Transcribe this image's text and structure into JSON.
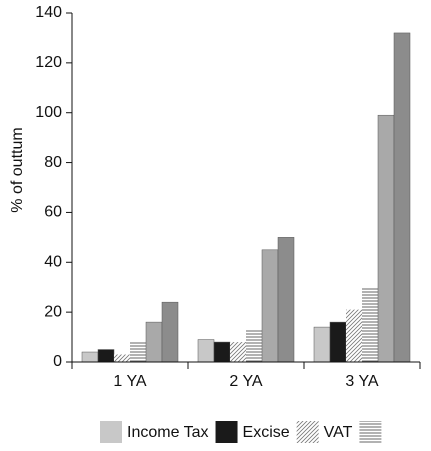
{
  "chart_data": {
    "type": "bar",
    "y_label": "% of outtum",
    "categories": [
      "1 YA",
      "2 YA",
      "3 YA"
    ],
    "series": [
      {
        "name": "Income Tax",
        "color": "#c8c8c8",
        "values": [
          4,
          9,
          14
        ]
      },
      {
        "name": "Excise",
        "color": "#1a1a1a",
        "values": [
          5,
          8,
          16
        ]
      },
      {
        "name": "VAT",
        "color": "#8a8a8a",
        "hatch": "diagonal",
        "values": [
          3,
          8,
          21
        ]
      },
      {
        "name": null,
        "color": "#8a8a8a",
        "hatch": "horizontal",
        "values": [
          8,
          13,
          30
        ]
      },
      {
        "name": null,
        "color": "#a9a9a9",
        "in_legend": false,
        "values": [
          16,
          45,
          99
        ]
      },
      {
        "name": null,
        "color": "#8c8c8c",
        "in_legend": false,
        "values": [
          24,
          50,
          132
        ]
      }
    ],
    "ylim": [
      0,
      140
    ],
    "yticks": [
      0,
      20,
      40,
      60,
      80,
      100,
      120,
      140
    ]
  }
}
